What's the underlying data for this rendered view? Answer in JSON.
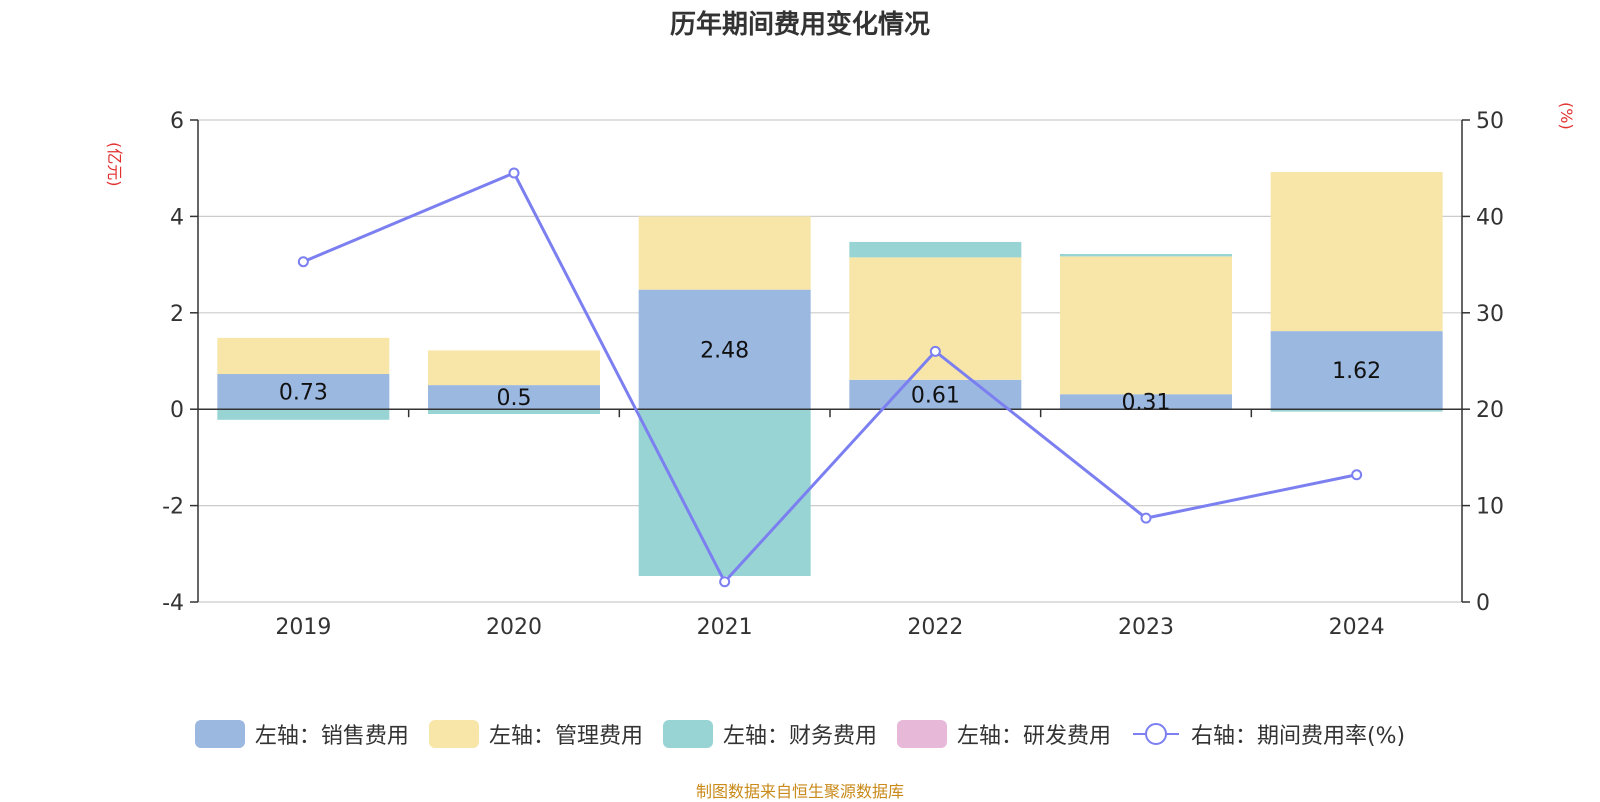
{
  "chart_data": {
    "type": "bar",
    "title": "历年期间费用变化情况",
    "categories": [
      "2019",
      "2020",
      "2021",
      "2022",
      "2023",
      "2024"
    ],
    "left_axis": {
      "unit": "(亿元)",
      "ylim": [
        -4,
        6
      ],
      "ticks": [
        "-4",
        "-2",
        "0",
        "2",
        "4",
        "6"
      ]
    },
    "right_axis": {
      "unit": "(%)",
      "ylim": [
        0,
        50
      ],
      "ticks": [
        "0",
        "10",
        "20",
        "30",
        "40",
        "50"
      ]
    },
    "grid": true,
    "legend_position": "bottom",
    "series": [
      {
        "name": "左轴：销售费用",
        "axis": "left",
        "type": "bar",
        "color": "#9bb8e1",
        "values": [
          0.73,
          0.5,
          2.48,
          0.61,
          0.31,
          1.62
        ],
        "labels": [
          "0.73",
          "0.5",
          "2.48",
          "0.61",
          "0.31",
          "1.62"
        ]
      },
      {
        "name": "左轴：管理费用",
        "axis": "left",
        "type": "bar",
        "color": "#f8e6a8",
        "values": [
          0.75,
          0.72,
          1.52,
          2.54,
          2.86,
          3.3
        ]
      },
      {
        "name": "左轴：财务费用",
        "axis": "left",
        "type": "bar",
        "color": "#98d4d4",
        "values": [
          -0.22,
          -0.1,
          -3.46,
          0.32,
          0.05,
          -0.05
        ]
      },
      {
        "name": "左轴：研发费用",
        "axis": "left",
        "type": "bar",
        "color": "#e8b8d8",
        "values": [
          0,
          0,
          0,
          0,
          0,
          0
        ]
      },
      {
        "name": "右轴：期间费用率(%)",
        "axis": "right",
        "type": "line",
        "color": "#7b7ff0",
        "values": [
          35.3,
          44.5,
          2.1,
          26.0,
          8.7,
          13.2
        ]
      }
    ],
    "source": "制图数据来自恒生聚源数据库"
  }
}
